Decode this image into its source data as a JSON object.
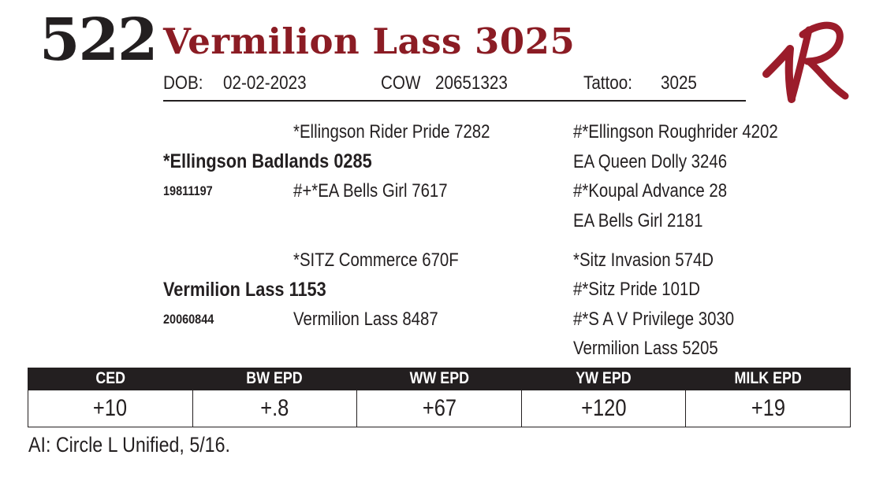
{
  "header": {
    "lot_number": "522",
    "animal_name": "Vermilion Lass 3025",
    "dob_label": "DOB:",
    "dob_value": "02-02-2023",
    "type_label": "COW",
    "reg_value": "20651323",
    "tattoo_label": "Tattoo:",
    "tattoo_value": "3025"
  },
  "brand": {
    "icon": "vr-brand-logo",
    "text": "VR",
    "color": "#9b1c2a"
  },
  "colors": {
    "name": "#8b1c24",
    "ink": "#231f20",
    "header_bar": "#231f20"
  },
  "pedigree": {
    "sire": {
      "name": "*Ellingson Badlands 0285",
      "reg": "19811197",
      "sire": "*Ellingson Rider Pride 7282",
      "dam": "#+*EA Bells Girl 7617",
      "sire_sire": "#*Ellingson Roughrider 4202",
      "sire_dam": "EA Queen Dolly 3246",
      "dam_sire": "#*Koupal Advance 28",
      "dam_dam": "EA Bells Girl 2181"
    },
    "dam": {
      "name": "Vermilion Lass 1153",
      "reg": "20060844",
      "sire": "*SITZ Commerce 670F",
      "dam": "Vermilion Lass 8487",
      "sire_sire": "*Sitz Invasion 574D",
      "sire_dam": "#*Sitz Pride 101D",
      "dam_sire": "#*S A V Privilege 3030",
      "dam_dam": "Vermilion Lass 5205"
    }
  },
  "epd": {
    "headers": [
      "CED",
      "BW EPD",
      "WW EPD",
      "YW EPD",
      "MILK EPD"
    ],
    "values": [
      "+10",
      "+.8",
      "+67",
      "+120",
      "+19"
    ]
  },
  "footnote": "AI: Circle L Unified, 5/16."
}
